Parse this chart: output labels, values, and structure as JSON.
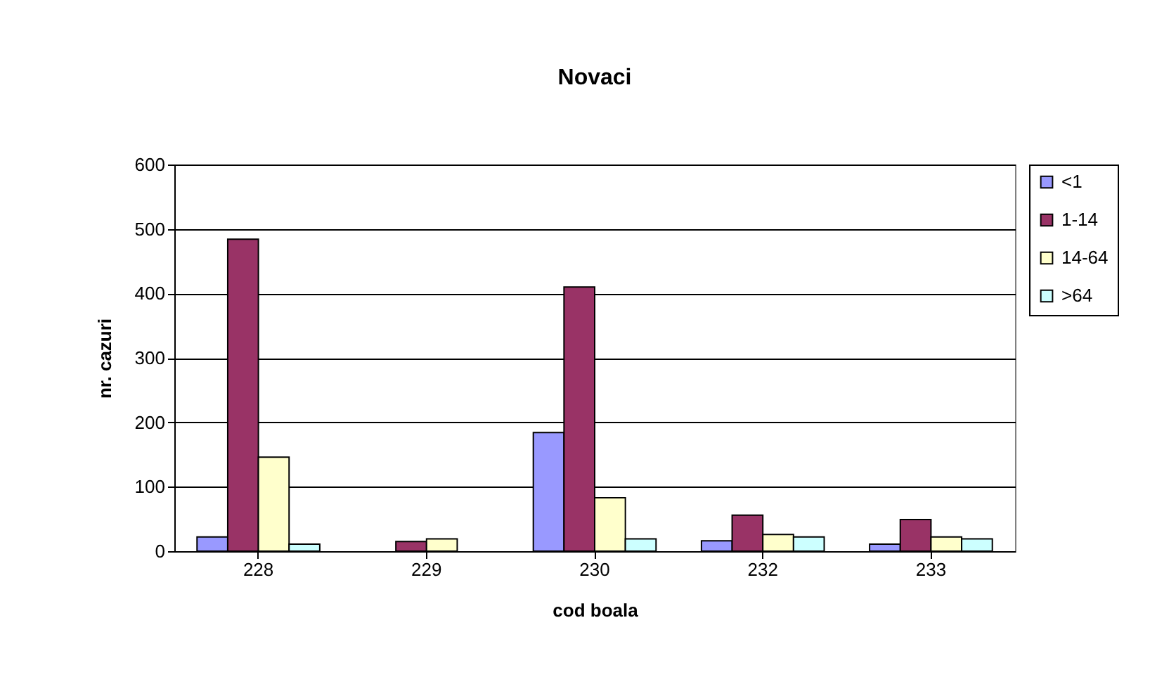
{
  "chart_data": {
    "type": "bar",
    "title": "Novaci",
    "xlabel": "cod boala",
    "ylabel": "nr. cazuri",
    "categories": [
      "228",
      "229",
      "230",
      "232",
      "233"
    ],
    "series": [
      {
        "name": "<1",
        "color": "#9999ff",
        "values": [
          22,
          null,
          184,
          16,
          11
        ]
      },
      {
        "name": "1-14",
        "color": "#993366",
        "values": [
          484,
          15,
          410,
          56,
          49
        ]
      },
      {
        "name": "14-64",
        "color": "#ffffcc",
        "values": [
          146,
          19,
          83,
          26,
          22
        ]
      },
      {
        "name": ">64",
        "color": "#ccffff",
        "values": [
          11,
          null,
          19,
          22,
          19
        ]
      }
    ],
    "ylim": [
      0,
      600
    ],
    "yticks": [
      0,
      100,
      200,
      300,
      400,
      500,
      600
    ],
    "grid": "y",
    "legend": "right"
  }
}
